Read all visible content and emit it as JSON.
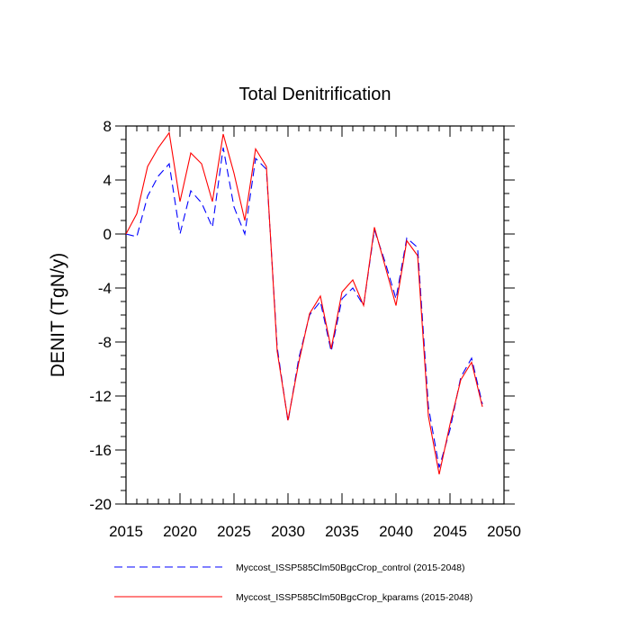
{
  "chart_data": {
    "type": "line",
    "title": "Total Denitrification",
    "xlabel": "",
    "ylabel": "DENIT  (TgN/y)",
    "xlim": [
      2015,
      2050
    ],
    "ylim": [
      -20,
      8
    ],
    "xticks": [
      2015,
      2020,
      2025,
      2030,
      2035,
      2040,
      2045,
      2050
    ],
    "yticks": [
      8,
      4,
      0,
      -4,
      -8,
      -12,
      -16,
      -20
    ],
    "x": [
      2015,
      2016,
      2017,
      2018,
      2019,
      2020,
      2021,
      2022,
      2023,
      2024,
      2025,
      2026,
      2027,
      2028,
      2029,
      2030,
      2031,
      2032,
      2033,
      2034,
      2035,
      2036,
      2037,
      2038,
      2039,
      2040,
      2041,
      2042,
      2043,
      2044,
      2045,
      2046,
      2047,
      2048
    ],
    "series": [
      {
        "name": "Myccost_ISSP585Clm50BgcCrop_control (2015-2048)",
        "color": "#0000ff",
        "style": "dashed",
        "values": [
          0.0,
          -0.2,
          2.8,
          4.3,
          5.2,
          0.0,
          3.2,
          2.3,
          0.5,
          6.4,
          2.0,
          0.0,
          5.6,
          4.8,
          -8.4,
          -13.9,
          -9.2,
          -6.0,
          -5.0,
          -8.7,
          -4.8,
          -4.0,
          -5.3,
          0.3,
          -2.1,
          -4.8,
          -0.3,
          -1.0,
          -12.8,
          -17.3,
          -14.5,
          -10.6,
          -9.2,
          -12.6
        ]
      },
      {
        "name": "Myccost_ISSP585Clm50BgcCrop_kparams (2015-2048)",
        "color": "#ff0000",
        "style": "solid",
        "values": [
          0.0,
          1.5,
          5.0,
          6.4,
          7.5,
          2.4,
          6.0,
          5.2,
          2.4,
          7.4,
          4.5,
          1.0,
          6.3,
          5.0,
          -8.7,
          -13.8,
          -9.5,
          -5.9,
          -4.6,
          -8.5,
          -4.3,
          -3.4,
          -5.3,
          0.5,
          -2.4,
          -5.3,
          -0.5,
          -1.6,
          -13.5,
          -17.8,
          -14.1,
          -10.8,
          -9.5,
          -12.8
        ]
      }
    ],
    "legend": "bottom"
  }
}
